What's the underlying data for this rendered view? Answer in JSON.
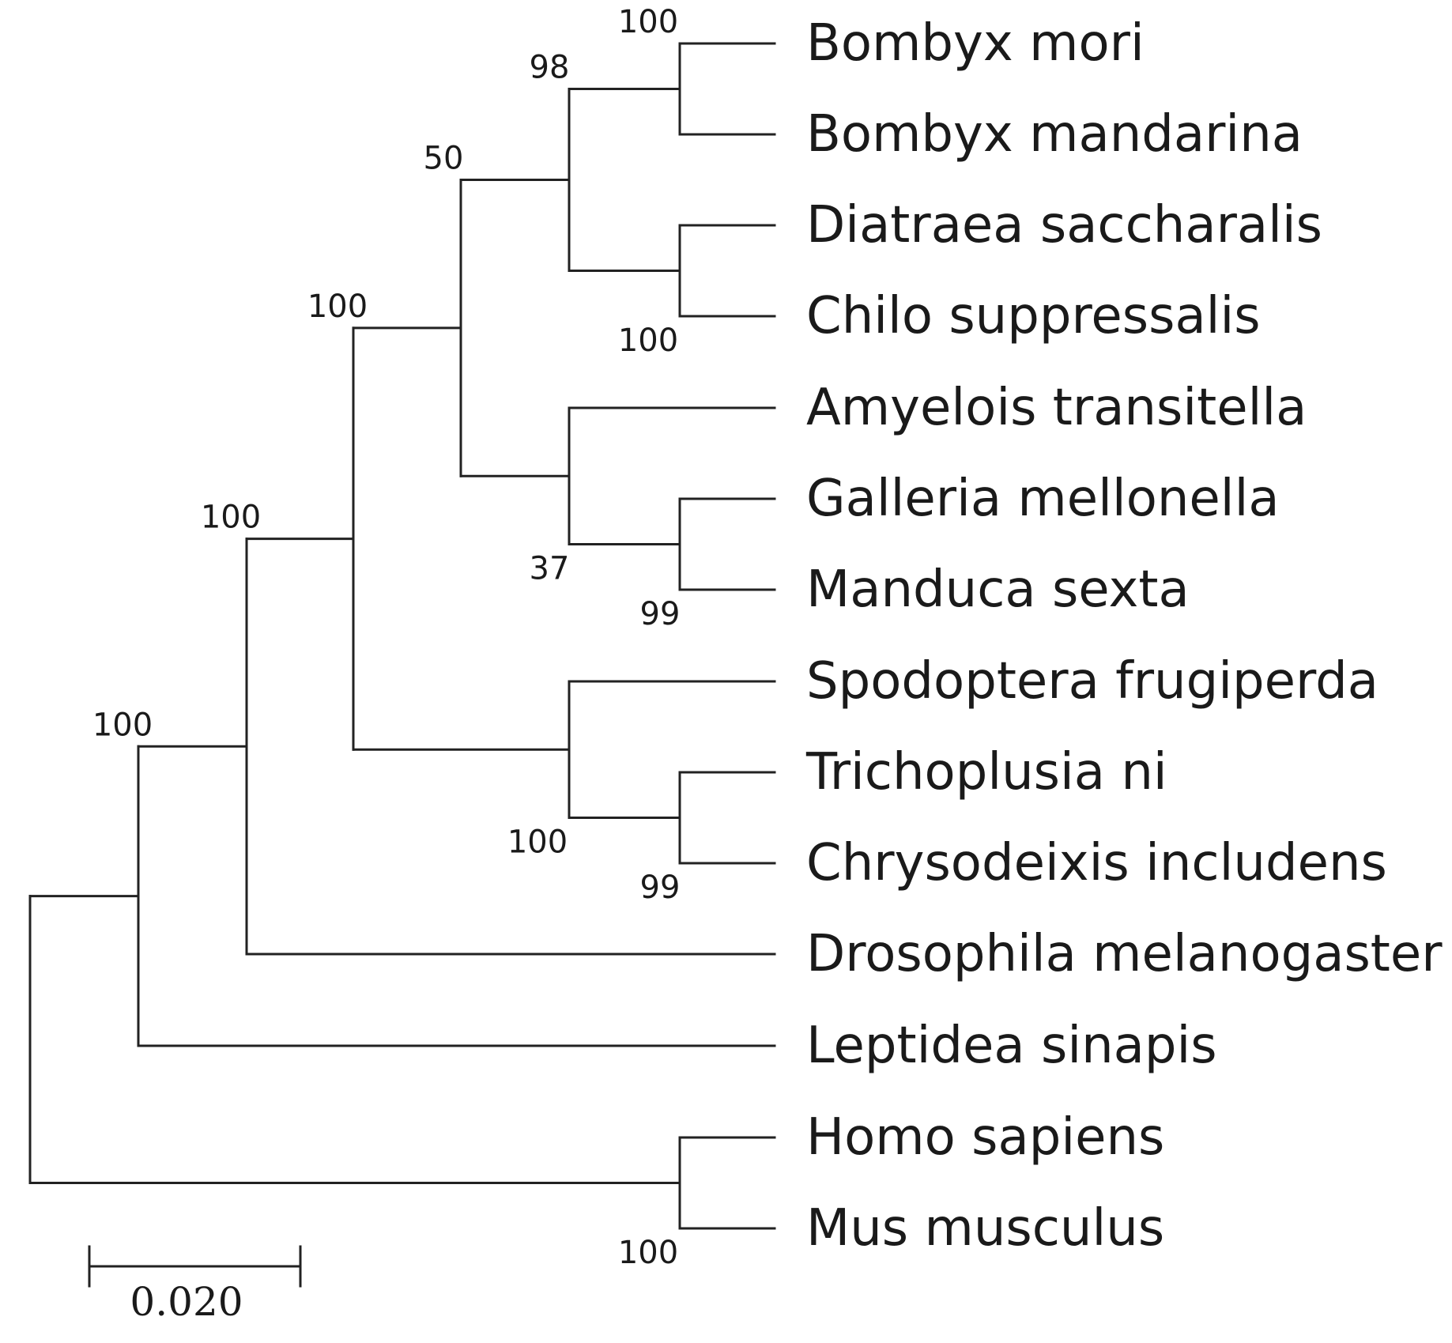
{
  "tree": {
    "name": "root",
    "children": [
      {
        "name": "ingroup",
        "support": "100",
        "children": [
          {
            "name": "lep-dros",
            "support": "100",
            "children": [
              {
                "name": "lep-core",
                "support": "100",
                "children": [
                  {
                    "name": "pyraloid-bombycoid",
                    "support": "50",
                    "children": [
                      {
                        "name": "bomb-crambid",
                        "support": "98",
                        "children": [
                          {
                            "name": "bombyx",
                            "support": "100",
                            "children": [
                              {
                                "label": "Bombyx mori"
                              },
                              {
                                "label": "Bombyx mandarina"
                              }
                            ]
                          },
                          {
                            "name": "crambid",
                            "support": "100",
                            "children": [
                              {
                                "label": "Diatraea saccharalis"
                              },
                              {
                                "label": "Chilo suppressalis"
                              }
                            ]
                          }
                        ]
                      },
                      {
                        "name": "amy-gal-man",
                        "support": "37",
                        "children": [
                          {
                            "label": "Amyelois transitella"
                          },
                          {
                            "name": "gal-man",
                            "support": "99",
                            "children": [
                              {
                                "label": "Galleria mellonella"
                              },
                              {
                                "label": "Manduca sexta"
                              }
                            ]
                          }
                        ]
                      }
                    ]
                  },
                  {
                    "name": "noctuid",
                    "support": "100",
                    "children": [
                      {
                        "label": "Spodoptera frugiperda"
                      },
                      {
                        "name": "plusiinae",
                        "support": "99",
                        "children": [
                          {
                            "label": "Trichoplusia ni"
                          },
                          {
                            "label": "Chrysodeixis includens"
                          }
                        ]
                      }
                    ]
                  }
                ]
              },
              {
                "label": "Drosophila melanogaster"
              }
            ]
          },
          {
            "label": "Leptidea sinapis"
          }
        ]
      },
      {
        "name": "mammals",
        "support": "100",
        "children": [
          {
            "label": "Homo sapiens"
          },
          {
            "label": "Mus musculus"
          }
        ]
      }
    ]
  },
  "scale_bar": {
    "label": "0.020"
  },
  "colors": {
    "line": "#222222",
    "text": "#1a1a1a",
    "background": "#ffffff"
  }
}
